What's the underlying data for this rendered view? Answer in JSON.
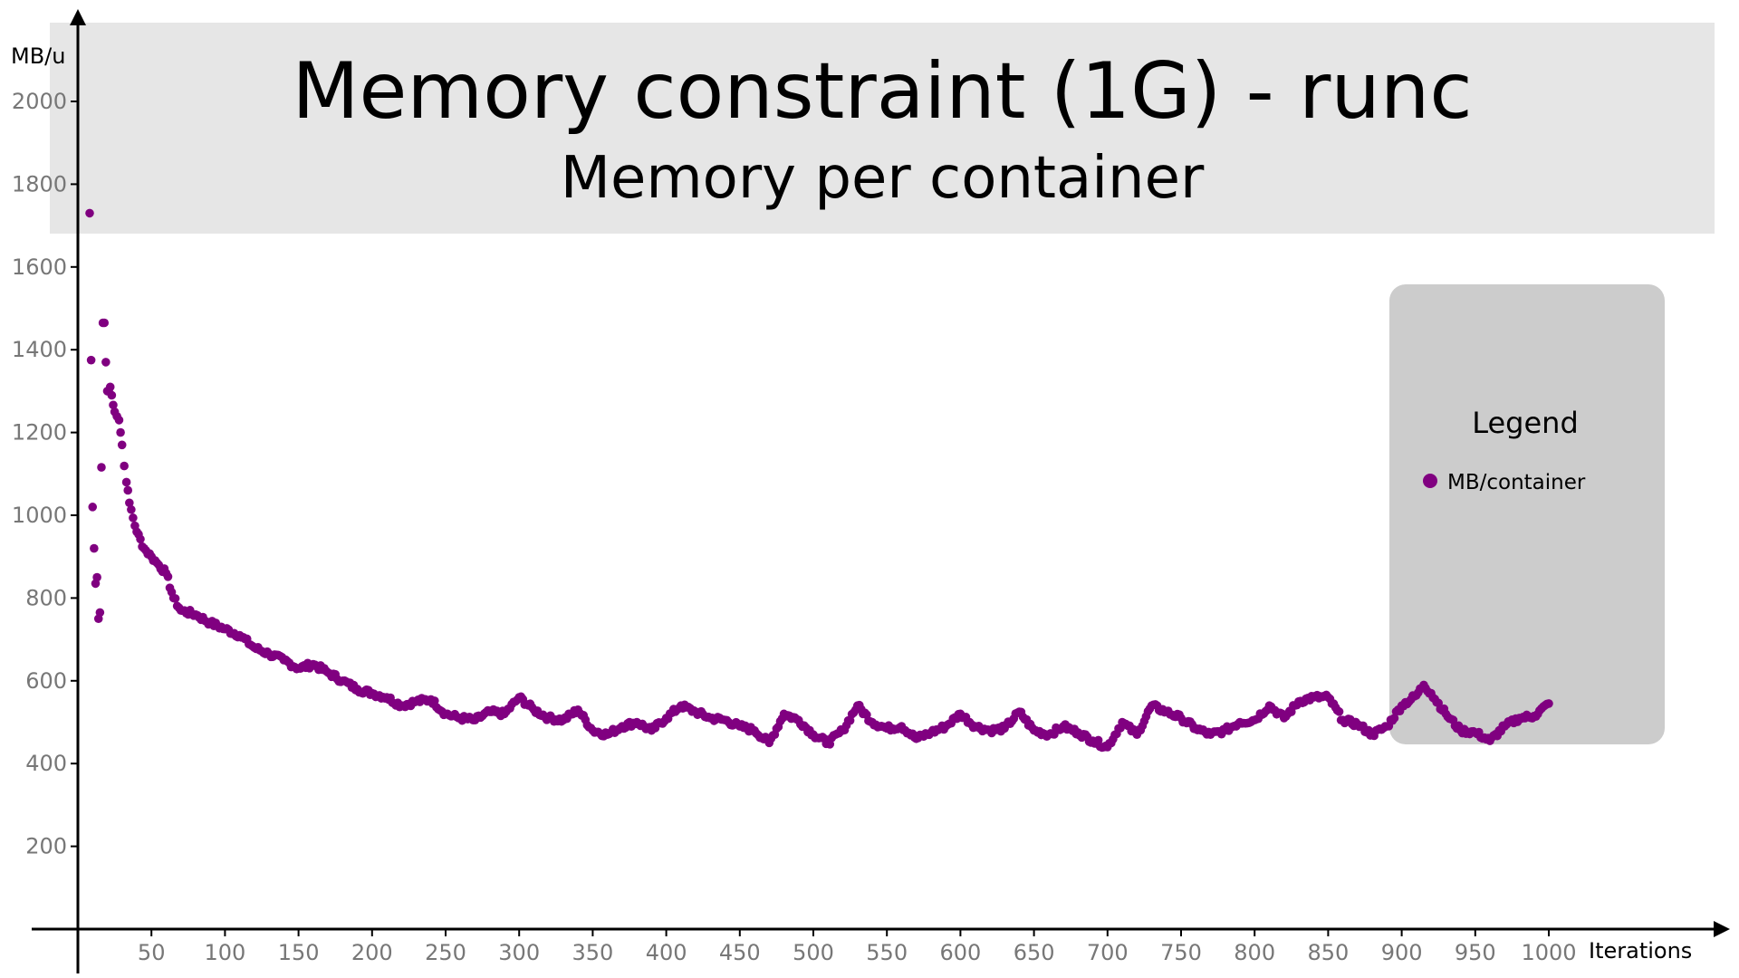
{
  "chart_data": {
    "type": "scatter",
    "title": "Memory constraint (1G) - runc",
    "subtitle": "Memory per container",
    "xlabel": "Iterations",
    "ylabel": "MB/u",
    "xlim": [
      0,
      1000
    ],
    "ylim": [
      0,
      2000
    ],
    "x_ticks": [
      "50",
      "100",
      "150",
      "200",
      "250",
      "300",
      "350",
      "400",
      "450",
      "500",
      "550",
      "600",
      "650",
      "700",
      "750",
      "800",
      "850",
      "900",
      "950",
      "1000"
    ],
    "y_ticks": [
      "200",
      "400",
      "600",
      "800",
      "1000",
      "1200",
      "1400",
      "1600",
      "1800",
      "2000"
    ],
    "grid": false,
    "legend": {
      "title": "Legend",
      "position": "right"
    },
    "series": [
      {
        "name": "MB/container",
        "color": "#800080",
        "anchors": [
          [
            8,
            1730
          ],
          [
            10,
            1020
          ],
          [
            11,
            920
          ],
          [
            12,
            835
          ],
          [
            13,
            850
          ],
          [
            14,
            750
          ],
          [
            15,
            765
          ],
          [
            17,
            1465
          ],
          [
            18,
            1465
          ],
          [
            19,
            1370
          ],
          [
            20,
            1300
          ],
          [
            22,
            1310
          ],
          [
            23,
            1290
          ],
          [
            25,
            1250
          ],
          [
            28,
            1230
          ],
          [
            30,
            1170
          ],
          [
            33,
            1080
          ],
          [
            35,
            1030
          ],
          [
            40,
            960
          ],
          [
            45,
            920
          ],
          [
            50,
            900
          ],
          [
            55,
            880
          ],
          [
            60,
            860
          ],
          [
            65,
            800
          ],
          [
            70,
            770
          ],
          [
            80,
            760
          ],
          [
            90,
            740
          ],
          [
            100,
            725
          ],
          [
            110,
            710
          ],
          [
            120,
            680
          ],
          [
            130,
            665
          ],
          [
            140,
            650
          ],
          [
            150,
            630
          ],
          [
            160,
            640
          ],
          [
            170,
            620
          ],
          [
            180,
            600
          ],
          [
            190,
            580
          ],
          [
            200,
            570
          ],
          [
            210,
            560
          ],
          [
            220,
            540
          ],
          [
            230,
            550
          ],
          [
            240,
            555
          ],
          [
            250,
            520
          ],
          [
            260,
            510
          ],
          [
            270,
            505
          ],
          [
            280,
            525
          ],
          [
            290,
            520
          ],
          [
            300,
            560
          ],
          [
            310,
            530
          ],
          [
            320,
            510
          ],
          [
            330,
            505
          ],
          [
            340,
            530
          ],
          [
            350,
            480
          ],
          [
            360,
            470
          ],
          [
            370,
            490
          ],
          [
            380,
            500
          ],
          [
            390,
            480
          ],
          [
            400,
            510
          ],
          [
            410,
            540
          ],
          [
            420,
            525
          ],
          [
            430,
            510
          ],
          [
            440,
            505
          ],
          [
            450,
            490
          ],
          [
            460,
            480
          ],
          [
            470,
            450
          ],
          [
            480,
            520
          ],
          [
            490,
            505
          ],
          [
            500,
            470
          ],
          [
            510,
            450
          ],
          [
            520,
            480
          ],
          [
            530,
            540
          ],
          [
            540,
            500
          ],
          [
            550,
            485
          ],
          [
            560,
            490
          ],
          [
            570,
            460
          ],
          [
            580,
            475
          ],
          [
            590,
            490
          ],
          [
            600,
            520
          ],
          [
            610,
            490
          ],
          [
            620,
            480
          ],
          [
            630,
            485
          ],
          [
            640,
            525
          ],
          [
            650,
            480
          ],
          [
            660,
            470
          ],
          [
            670,
            490
          ],
          [
            680,
            475
          ],
          [
            690,
            455
          ],
          [
            700,
            440
          ],
          [
            710,
            500
          ],
          [
            720,
            470
          ],
          [
            730,
            540
          ],
          [
            740,
            525
          ],
          [
            750,
            510
          ],
          [
            760,
            485
          ],
          [
            770,
            470
          ],
          [
            780,
            480
          ],
          [
            790,
            500
          ],
          [
            800,
            505
          ],
          [
            810,
            540
          ],
          [
            820,
            510
          ],
          [
            830,
            550
          ],
          [
            840,
            560
          ],
          [
            850,
            560
          ],
          [
            860,
            505
          ],
          [
            870,
            495
          ],
          [
            880,
            470
          ],
          [
            890,
            490
          ],
          [
            900,
            540
          ],
          [
            910,
            565
          ],
          [
            915,
            590
          ],
          [
            920,
            570
          ],
          [
            930,
            520
          ],
          [
            940,
            480
          ],
          [
            950,
            475
          ],
          [
            960,
            455
          ],
          [
            970,
            490
          ],
          [
            980,
            510
          ],
          [
            990,
            515
          ],
          [
            1000,
            545
          ]
        ]
      }
    ]
  }
}
